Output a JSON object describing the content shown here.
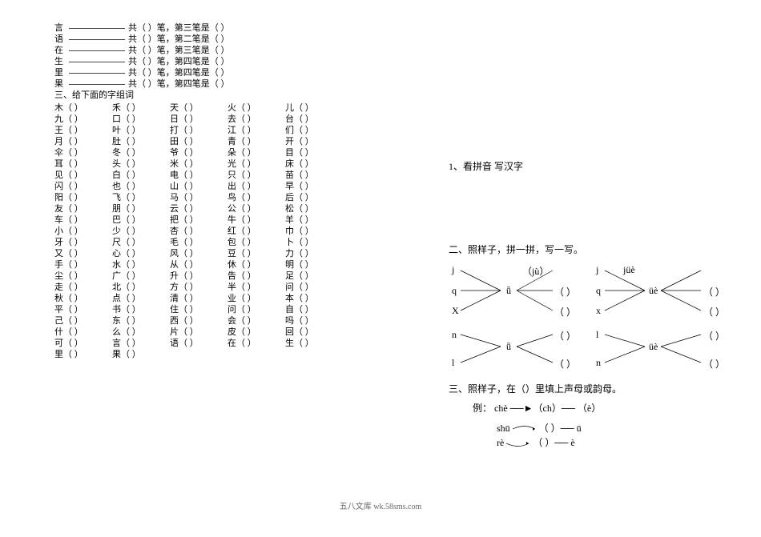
{
  "strokes": [
    {
      "char": "言",
      "text": "共（ ）笔，第三笔是（ ）"
    },
    {
      "char": "语",
      "text": "共（ ）笔，第二笔是（ ）"
    },
    {
      "char": "在",
      "text": "共（ ）笔，第三笔是（ ）"
    },
    {
      "char": "生",
      "text": "共（ ）笔，第四笔是（ ）"
    },
    {
      "char": "里",
      "text": "共（ ）笔，第四笔是（ ）"
    },
    {
      "char": "果",
      "text": "共（ ）笔，第四笔是（ ）"
    }
  ],
  "section3_title": "三、给下面的字组词",
  "word_rows": [
    [
      "木（ ）",
      "禾（ ）",
      "天（ ）",
      "火（ ）",
      "儿（ ）"
    ],
    [
      "九（ ）",
      "口（ ）",
      "日（ ）",
      "去（ ）",
      "台（ ）"
    ],
    [
      "王（ ）",
      "叶（ ）",
      "打（ ）",
      "江（ ）",
      "们（ ）"
    ],
    [
      "月（ ）",
      "肚（ ）",
      "田（ ）",
      "青（ ）",
      "开（ ）"
    ],
    [
      "伞（ ）",
      "冬（ ）",
      "爷（ ）",
      "朵（ ）",
      "目（ ）"
    ],
    [
      "耳（ ）",
      "头（ ）",
      "米（ ）",
      "光（ ）",
      "床（ ）"
    ],
    [
      "见（ ）",
      "白（ ）",
      "电（ ）",
      "只（ ）",
      "苗（ ）"
    ],
    [
      "闪（ ）",
      "也（ ）",
      "山（ ）",
      "出（ ）",
      "早（ ）"
    ],
    [
      "阳（ ）",
      "飞（ ）",
      "马（ ）",
      "鸟（ ）",
      "后（ ）"
    ],
    [
      "友（ ）",
      "朋（ ）",
      "云（ ）",
      "公（ ）",
      "松（ ）"
    ],
    [
      "车（ ）",
      "巴（ ）",
      "把（ ）",
      "牛（ ）",
      "羊（ ）"
    ],
    [
      "小（ ）",
      "少（ ）",
      "杏（ ）",
      "红（ ）",
      "巾（ ）"
    ],
    [
      "牙（ ）",
      "尺（ ）",
      "毛（ ）",
      "包（ ）",
      "卜（ ）"
    ],
    [
      "又（ ）",
      "心（ ）",
      "风（ ）",
      "豆（ ）",
      "力（ ）"
    ],
    [
      "手（ ）",
      "水（ ）",
      "从（ ）",
      "休（ ）",
      "明（ ）"
    ],
    [
      "尘（ ）",
      "广（ ）",
      "升（ ）",
      "告（ ）",
      "足（ ）"
    ],
    [
      "走（ ）",
      "北（ ）",
      "方（ ）",
      "半（ ）",
      "问（ ）"
    ],
    [
      "秋（ ）",
      "点（ ）",
      "清（ ）",
      "业（ ）",
      "本（ ）"
    ],
    [
      "平（ ）",
      "书（ ）",
      "住（ ）",
      "问（ ）",
      "自（ ）"
    ],
    [
      "己（ ）",
      "东（ ）",
      "西（ ）",
      "会（ ）",
      "吗（ ）"
    ],
    [
      "什（ ）",
      "么（ ）",
      "片（ ）",
      "皮（ ）",
      "回（ ）"
    ],
    [
      "可（ ）",
      "言（ ）",
      "语（ ）",
      "在（ ）",
      "生（ ）"
    ],
    [
      "里（ ）",
      "果（ ）",
      "",
      "",
      ""
    ]
  ],
  "right": {
    "q1": "1、看拼音 写汉字",
    "q2_title": "二、照样子，拼一拼，写一写。",
    "q3_title": "三、照样子，在（）里填上声母或韵母。",
    "example_label": "例：",
    "example_text": "chè ──►（ch）── （è）",
    "shu": "shū",
    "re": "rè",
    "u_paren": "（  ）── ū",
    "e_paren": "（  ）── è",
    "diagram": {
      "j1": "j",
      "q1": "q",
      "x1": "X",
      "n1": "n",
      "l1": "l",
      "ju": "（jù）",
      "paren": "（  ）",
      "u_umlaut": "ü",
      "j2": "j",
      "q2": "q",
      "x2": "x",
      "l2": "l",
      "n2": "n",
      "jue": "jüè",
      "ue": "üè",
      "ü": "ǖ"
    }
  },
  "footer": "五八文库 wk.58sms.com"
}
